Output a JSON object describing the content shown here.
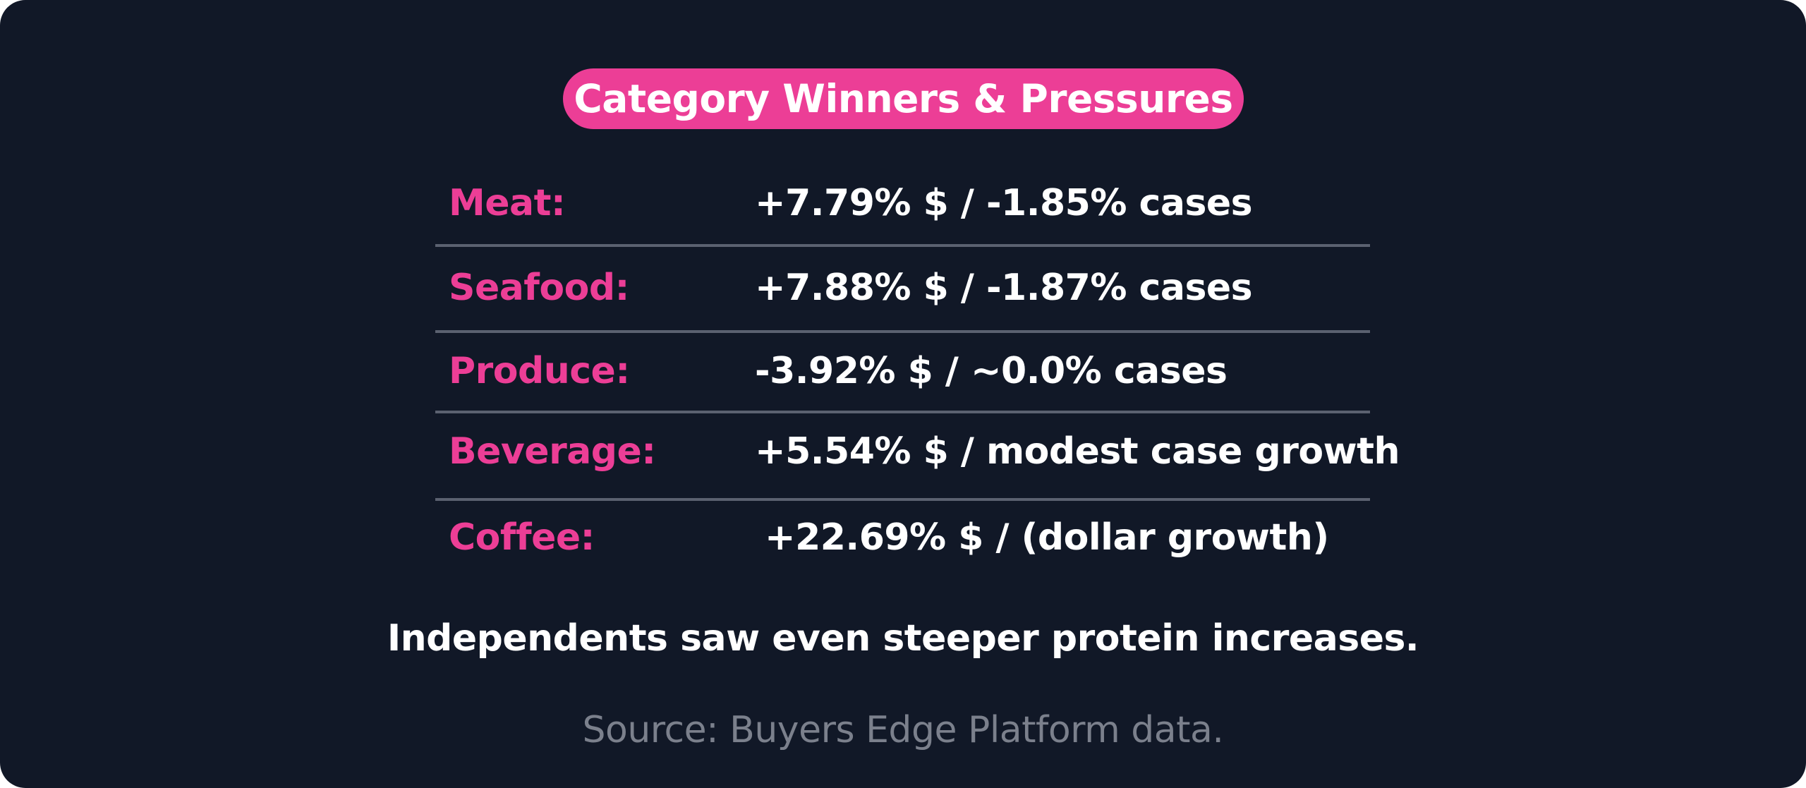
{
  "title": "Category Winners & Pressures",
  "rows": [
    {
      "label": "Meat:",
      "value": "+7.79% $ / -1.85% cases"
    },
    {
      "label": "Seafood:",
      "value": "+7.88% $ / -1.87% cases"
    },
    {
      "label": "Produce:",
      "value": "-3.92% $ / ~0.0% cases"
    },
    {
      "label": "Beverage:",
      "value": "+5.54% $ / modest case growth"
    },
    {
      "label": "Coffee:",
      "value": "+22.69% $ / (dollar growth)"
    }
  ],
  "note": "Independents saw even steeper protein increases.",
  "source": "Source: Buyers Edge Platform data.",
  "colors": {
    "background": "#111827",
    "accent": "#ec3e96",
    "text": "#ffffff",
    "divider": "#5b6170",
    "muted": "#7b808c"
  }
}
